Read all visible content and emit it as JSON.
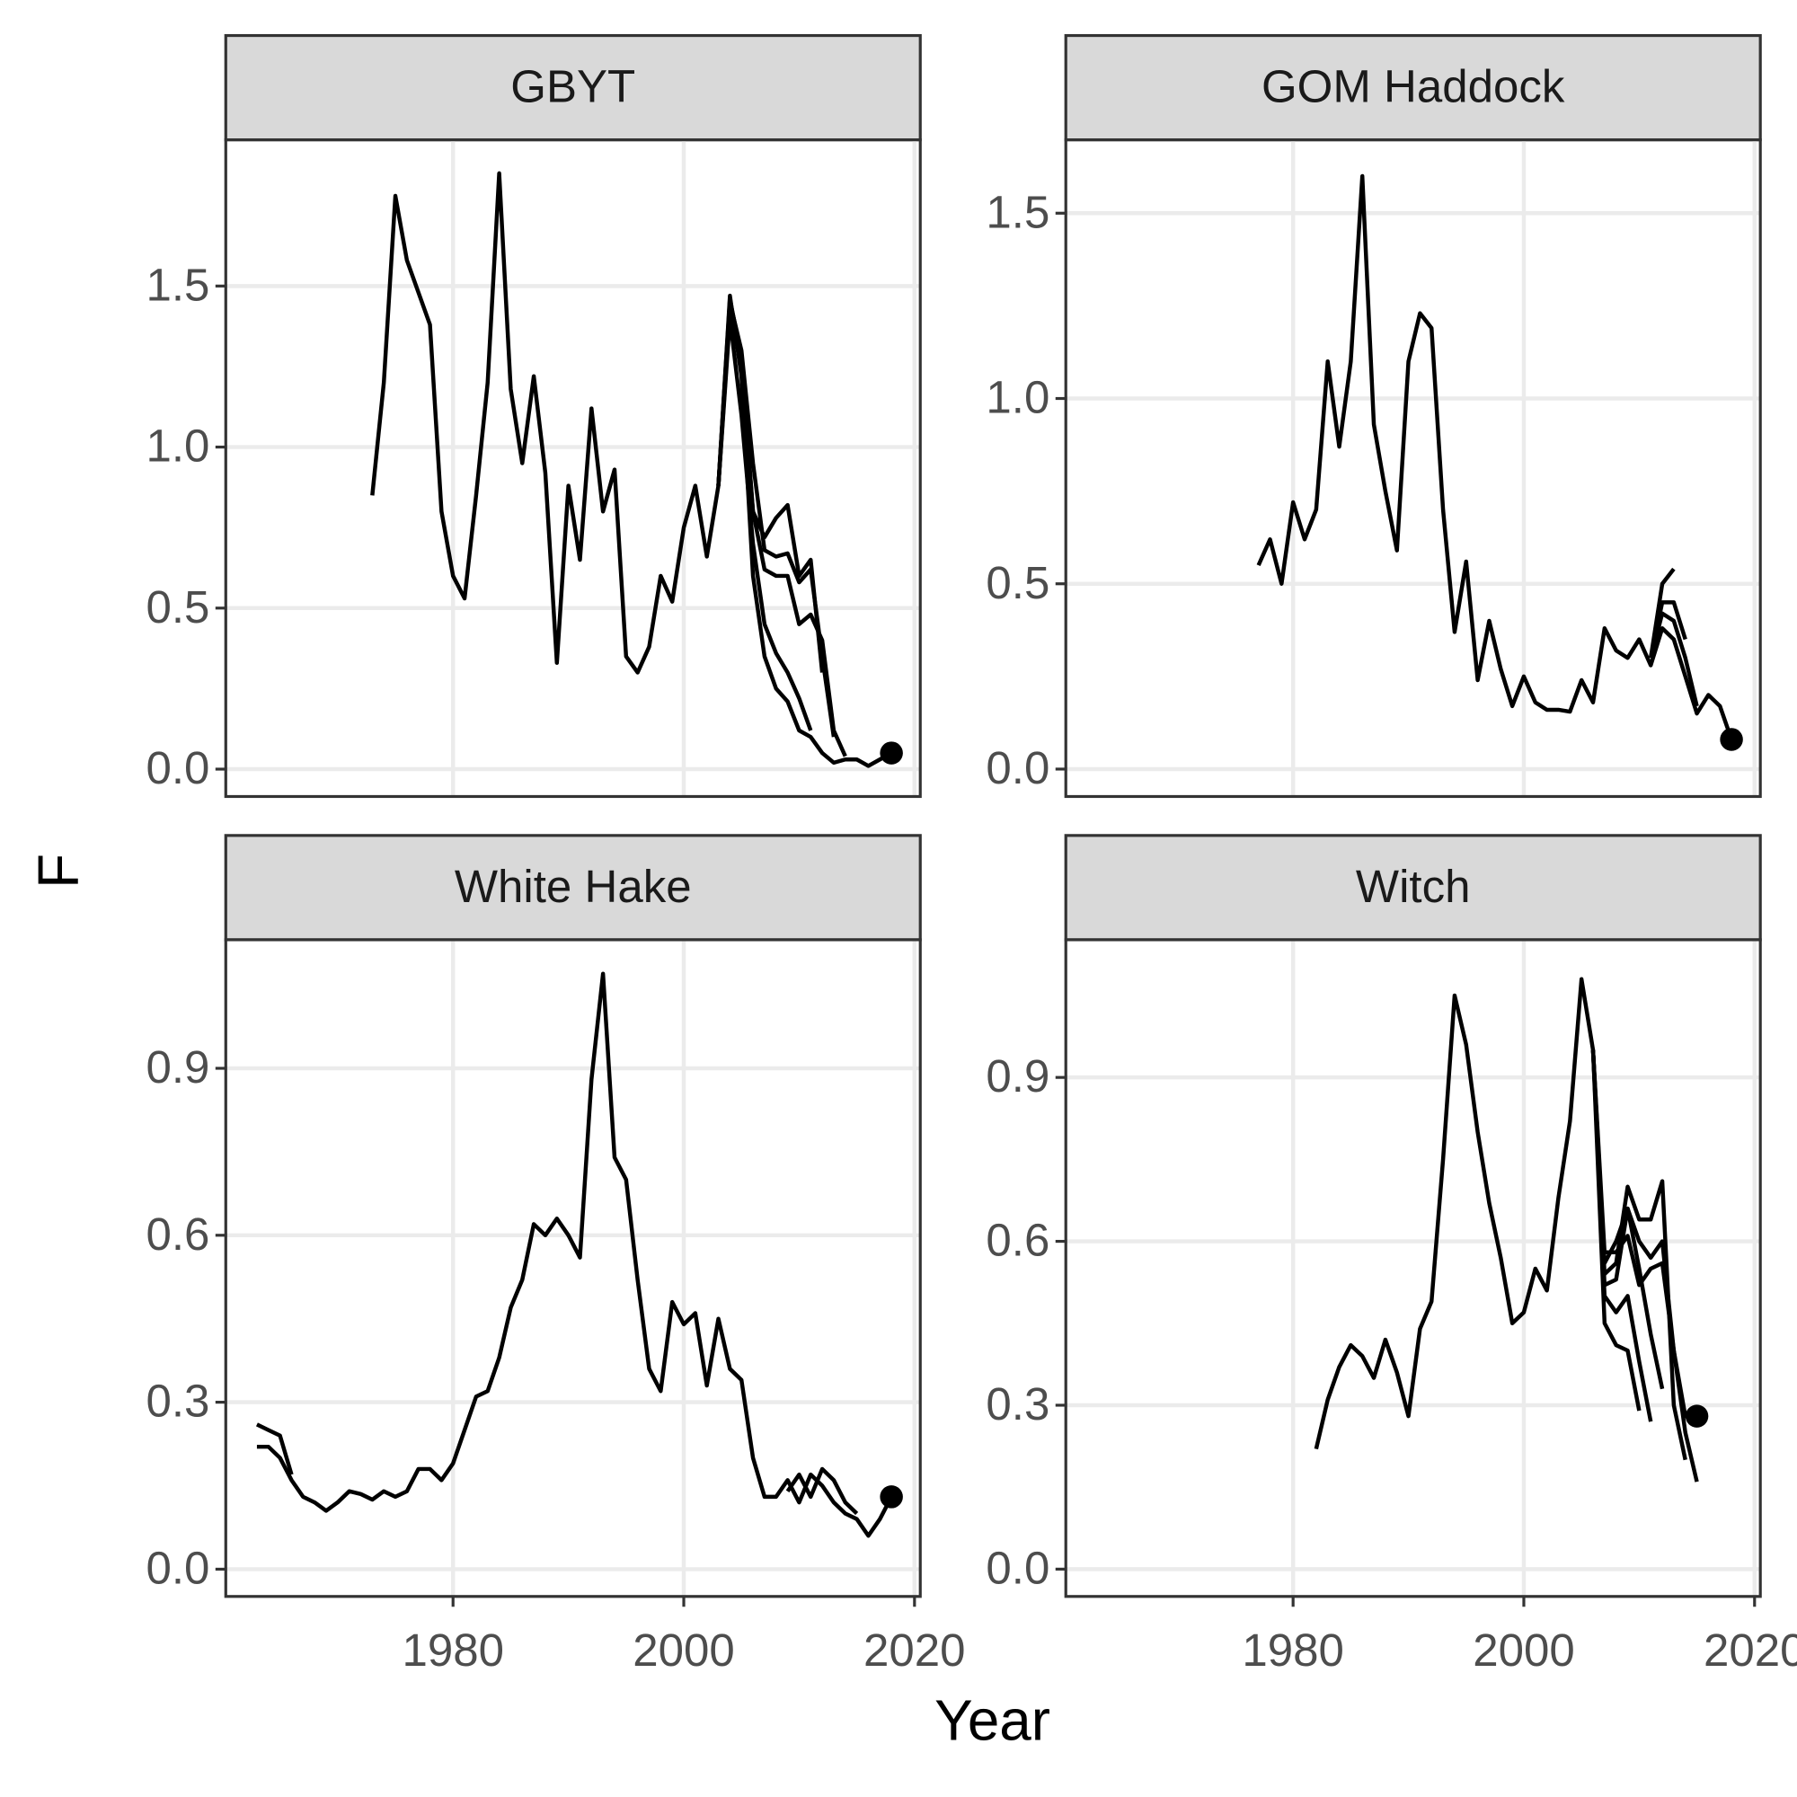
{
  "x_label": "Year",
  "y_label": "F",
  "chart_data": [
    {
      "type": "line",
      "title": "GBYT",
      "xlim": [
        1960.3,
        2020.5
      ],
      "xticks": [
        1980,
        2000,
        2020
      ],
      "ylim": [
        -0.085,
        1.954
      ],
      "yticks": [
        {
          "value": 0,
          "label": "0.0"
        },
        0.5,
        {
          "value": 1,
          "label": "1.0"
        },
        1.5
      ],
      "grid": true,
      "series": [
        {
          "color": "#000000",
          "marker_last": true,
          "x": [
            1973,
            1974,
            1975,
            1976,
            1977,
            1978,
            1979,
            1980,
            1981,
            1982,
            1983,
            1984,
            1985,
            1986,
            1987,
            1988,
            1989,
            1990,
            1991,
            1992,
            1993,
            1994,
            1995,
            1996,
            1997,
            1998,
            1999,
            2000,
            2001,
            2002,
            2003,
            2004,
            2005,
            2006,
            2007,
            2008,
            2009,
            2010,
            2011,
            2012,
            2013,
            2014,
            2015,
            2016,
            2017,
            2018
          ],
          "values": [
            0.85,
            1.2,
            1.78,
            1.58,
            1.48,
            1.38,
            0.8,
            0.6,
            0.53,
            0.85,
            1.2,
            1.85,
            1.18,
            0.95,
            1.22,
            0.92,
            0.33,
            0.88,
            0.65,
            1.12,
            0.8,
            0.93,
            0.35,
            0.3,
            0.38,
            0.6,
            0.52,
            0.75,
            0.88,
            0.66,
            0.88,
            1.47,
            1.22,
            0.6,
            0.35,
            0.25,
            0.21,
            0.12,
            0.1,
            0.05,
            0.02,
            0.03,
            0.03,
            0.01,
            0.03,
            0.05
          ]
        },
        {
          "color": "#000000",
          "x": [
            2003,
            2004,
            2005,
            2006,
            2007,
            2008,
            2009,
            2010,
            2011,
            2012,
            2013
          ],
          "values": [
            0.88,
            1.45,
            1.3,
            0.95,
            0.68,
            0.66,
            0.67,
            0.58,
            0.62,
            0.35,
            0.1
          ]
        },
        {
          "color": "#000000",
          "x": [
            2003,
            2004,
            2005,
            2006,
            2007,
            2008,
            2009,
            2010,
            2011,
            2012
          ],
          "values": [
            0.88,
            1.42,
            1.25,
            0.8,
            0.72,
            0.78,
            0.82,
            0.6,
            0.65,
            0.3
          ]
        },
        {
          "color": "#000000",
          "x": [
            2003,
            2004,
            2005,
            2006,
            2007,
            2008,
            2009,
            2010,
            2011
          ],
          "values": [
            0.88,
            1.4,
            1.1,
            0.7,
            0.45,
            0.36,
            0.3,
            0.22,
            0.12
          ]
        },
        {
          "color": "#000000",
          "x": [
            2003,
            2004,
            2005,
            2006,
            2007,
            2008,
            2009,
            2010,
            2011,
            2012,
            2013,
            2014
          ],
          "values": [
            0.88,
            1.46,
            1.28,
            0.8,
            0.62,
            0.6,
            0.6,
            0.45,
            0.48,
            0.4,
            0.12,
            0.04
          ]
        }
      ]
    },
    {
      "type": "line",
      "title": "GOM Haddock",
      "xlim": [
        1960.3,
        2020.5
      ],
      "xticks": [
        1980,
        2000,
        2020
      ],
      "ylim": [
        -0.074,
        1.698
      ],
      "yticks": [
        {
          "value": 0,
          "label": "0.0"
        },
        0.5,
        {
          "value": 1,
          "label": "1.0"
        },
        1.5
      ],
      "grid": true,
      "series": [
        {
          "color": "#000000",
          "marker_last": true,
          "x": [
            1977,
            1978,
            1979,
            1980,
            1981,
            1982,
            1983,
            1984,
            1985,
            1986,
            1987,
            1988,
            1989,
            1990,
            1991,
            1992,
            1993,
            1994,
            1995,
            1996,
            1997,
            1998,
            1999,
            2000,
            2001,
            2002,
            2003,
            2004,
            2005,
            2006,
            2007,
            2008,
            2009,
            2010,
            2011,
            2012,
            2013,
            2014,
            2015,
            2016,
            2017,
            2018
          ],
          "values": [
            0.55,
            0.62,
            0.5,
            0.72,
            0.62,
            0.7,
            1.1,
            0.87,
            1.1,
            1.6,
            0.93,
            0.75,
            0.59,
            1.1,
            1.23,
            1.19,
            0.7,
            0.37,
            0.56,
            0.24,
            0.4,
            0.27,
            0.17,
            0.25,
            0.18,
            0.16,
            0.16,
            0.155,
            0.24,
            0.18,
            0.38,
            0.32,
            0.3,
            0.35,
            0.28,
            0.38,
            0.35,
            0.25,
            0.15,
            0.2,
            0.17,
            0.08
          ]
        },
        {
          "color": "#000000",
          "x": [
            2011,
            2012,
            2013
          ],
          "values": [
            0.3,
            0.5,
            0.54
          ]
        },
        {
          "color": "#000000",
          "x": [
            2011,
            2012,
            2013,
            2014
          ],
          "values": [
            0.3,
            0.45,
            0.45,
            0.35
          ]
        },
        {
          "color": "#000000",
          "x": [
            2011,
            2012,
            2013,
            2014,
            2015
          ],
          "values": [
            0.3,
            0.42,
            0.4,
            0.3,
            0.17
          ]
        }
      ]
    },
    {
      "type": "line",
      "title": "White Hake",
      "xlim": [
        1960.3,
        2020.5
      ],
      "xticks": [
        1980,
        2000,
        2020
      ],
      "ylim": [
        -0.049,
        1.131
      ],
      "yticks": [
        {
          "value": 0,
          "label": "0.0"
        },
        0.3,
        0.6,
        0.9
      ],
      "grid": true,
      "series": [
        {
          "color": "#000000",
          "marker_last": true,
          "x": [
            1963,
            1964,
            1965,
            1966,
            1967,
            1968,
            1969,
            1970,
            1971,
            1972,
            1973,
            1974,
            1975,
            1976,
            1977,
            1978,
            1979,
            1980,
            1981,
            1982,
            1983,
            1984,
            1985,
            1986,
            1987,
            1988,
            1989,
            1990,
            1991,
            1992,
            1993,
            1994,
            1995,
            1996,
            1997,
            1998,
            1999,
            2000,
            2001,
            2002,
            2003,
            2004,
            2005,
            2006,
            2007,
            2008,
            2009,
            2010,
            2011,
            2012,
            2013,
            2014,
            2015,
            2016,
            2017,
            2018
          ],
          "values": [
            0.22,
            0.22,
            0.2,
            0.16,
            0.13,
            0.12,
            0.105,
            0.12,
            0.14,
            0.135,
            0.125,
            0.14,
            0.13,
            0.14,
            0.18,
            0.18,
            0.16,
            0.19,
            0.25,
            0.31,
            0.32,
            0.38,
            0.47,
            0.52,
            0.62,
            0.6,
            0.63,
            0.6,
            0.56,
            0.88,
            1.07,
            0.74,
            0.7,
            0.52,
            0.36,
            0.32,
            0.48,
            0.44,
            0.46,
            0.33,
            0.45,
            0.36,
            0.34,
            0.2,
            0.13,
            0.13,
            0.16,
            0.12,
            0.17,
            0.15,
            0.12,
            0.1,
            0.09,
            0.06,
            0.09,
            0.13
          ]
        },
        {
          "color": "#000000",
          "x": [
            1963,
            1964,
            1965,
            1966
          ],
          "values": [
            0.26,
            0.25,
            0.24,
            0.17
          ]
        },
        {
          "color": "#000000",
          "x": [
            2009,
            2010,
            2011,
            2012,
            2013,
            2014,
            2015
          ],
          "values": [
            0.14,
            0.17,
            0.13,
            0.18,
            0.16,
            0.12,
            0.1
          ]
        }
      ]
    },
    {
      "type": "line",
      "title": "Witch",
      "xlim": [
        1960.3,
        2020.5
      ],
      "xticks": [
        1980,
        2000,
        2020
      ],
      "ylim": [
        -0.05,
        1.152
      ],
      "yticks": [
        {
          "value": 0,
          "label": "0.0"
        },
        0.3,
        0.6,
        0.9
      ],
      "grid": true,
      "series": [
        {
          "color": "#000000",
          "marker_last": true,
          "x": [
            1982,
            1983,
            1984,
            1985,
            1986,
            1987,
            1988,
            1989,
            1990,
            1991,
            1992,
            1993,
            1994,
            1995,
            1996,
            1997,
            1998,
            1999,
            2000,
            2001,
            2002,
            2003,
            2004,
            2005,
            2006,
            2007,
            2008,
            2009,
            2010,
            2011,
            2012,
            2013,
            2014,
            2015
          ],
          "values": [
            0.22,
            0.31,
            0.37,
            0.41,
            0.39,
            0.35,
            0.42,
            0.36,
            0.28,
            0.44,
            0.49,
            0.75,
            1.05,
            0.96,
            0.8,
            0.67,
            0.57,
            0.45,
            0.47,
            0.55,
            0.51,
            0.68,
            0.82,
            1.08,
            0.95,
            0.58,
            0.58,
            0.61,
            0.52,
            0.55,
            0.56,
            0.4,
            0.28,
            0.28
          ]
        },
        {
          "color": "#000000",
          "x": [
            2006,
            2007,
            2008,
            2009,
            2010
          ],
          "values": [
            0.95,
            0.45,
            0.41,
            0.4,
            0.29
          ]
        },
        {
          "color": "#000000",
          "x": [
            2006,
            2007,
            2008,
            2009,
            2010,
            2011
          ],
          "values": [
            0.95,
            0.5,
            0.47,
            0.5,
            0.38,
            0.27
          ]
        },
        {
          "color": "#000000",
          "x": [
            2006,
            2007,
            2008,
            2009,
            2010,
            2011,
            2012,
            2013,
            2014
          ],
          "values": [
            0.95,
            0.54,
            0.56,
            0.7,
            0.64,
            0.64,
            0.71,
            0.3,
            0.2
          ]
        },
        {
          "color": "#000000",
          "x": [
            2006,
            2007,
            2008,
            2009,
            2010,
            2011,
            2012
          ],
          "values": [
            0.95,
            0.52,
            0.53,
            0.66,
            0.55,
            0.43,
            0.33
          ]
        },
        {
          "color": "#000000",
          "x": [
            2006,
            2007,
            2008,
            2009,
            2010,
            2011,
            2012,
            2013,
            2014,
            2015
          ],
          "values": [
            0.95,
            0.56,
            0.6,
            0.66,
            0.6,
            0.57,
            0.6,
            0.4,
            0.25,
            0.16
          ]
        }
      ]
    }
  ]
}
